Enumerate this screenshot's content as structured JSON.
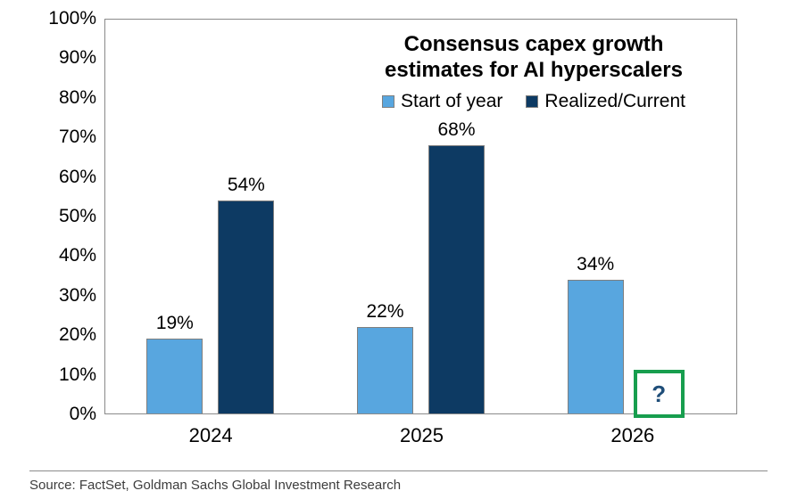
{
  "chart_data": {
    "type": "bar",
    "title_lines": [
      "Consensus capex growth",
      "estimates for AI hyperscalers"
    ],
    "categories": [
      "2024",
      "2025",
      "2026"
    ],
    "series": [
      {
        "name": "Start of year",
        "color": "#58A6DF",
        "values": [
          19,
          22,
          34
        ],
        "labels": [
          "19%",
          "22%",
          "34%"
        ]
      },
      {
        "name": "Realized/Current",
        "color": "#0D3A63",
        "values": [
          54,
          68,
          null
        ],
        "labels": [
          "54%",
          "68%",
          ""
        ]
      }
    ],
    "unknown_marker": {
      "category": "2026",
      "series": "Realized/Current",
      "symbol": "?",
      "box_border_color": "#179E4E",
      "symbol_color": "#1F4E79",
      "box_fill": "#FFFFFF"
    },
    "y_ticks": [
      "0%",
      "10%",
      "20%",
      "30%",
      "40%",
      "50%",
      "60%",
      "70%",
      "80%",
      "90%",
      "100%"
    ],
    "ylim": [
      0,
      100
    ],
    "grid": false,
    "legend_position": "inside-top-right",
    "bar_border_color": "#7F7F7F",
    "axis_border_color": "#8A8A8A",
    "background": "#FFFFFF"
  },
  "source": {
    "text": "Source: FactSet, Goldman Sachs Global Investment Research"
  }
}
